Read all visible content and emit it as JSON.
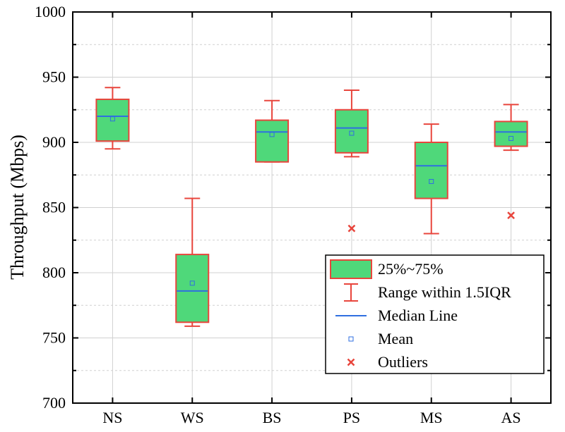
{
  "chart_data": {
    "type": "box",
    "title": "",
    "xlabel": "",
    "ylabel": "Throughput (Mbps)",
    "ylim": [
      700,
      1000
    ],
    "yticks": [
      700,
      750,
      800,
      850,
      900,
      950,
      1000
    ],
    "y_minor_step": 25,
    "grid": true,
    "legend_position": "bottom-right",
    "colors": {
      "box_fill": "#4fd87a",
      "box_edge": "#e8453c",
      "whisker": "#e8453c",
      "median": "#2f6fe0",
      "mean": "#2f6fe0",
      "outlier": "#e8453c",
      "grid": "#d0d0d0"
    },
    "categories": [
      "NS",
      "WS",
      "BS",
      "PS",
      "MS",
      "AS"
    ],
    "boxes": [
      {
        "name": "NS",
        "whisker_low": 895,
        "q1": 901,
        "median": 920,
        "q3": 933,
        "whisker_high": 942,
        "mean": 918,
        "outliers": []
      },
      {
        "name": "WS",
        "whisker_low": 759,
        "q1": 762,
        "median": 786,
        "q3": 814,
        "whisker_high": 857,
        "mean": 792,
        "outliers": []
      },
      {
        "name": "BS",
        "whisker_low": 885,
        "q1": 885,
        "median": 908,
        "q3": 917,
        "whisker_high": 932,
        "mean": 906,
        "outliers": []
      },
      {
        "name": "PS",
        "whisker_low": 889,
        "q1": 892,
        "median": 911,
        "q3": 925,
        "whisker_high": 940,
        "mean": 907,
        "outliers": [
          834
        ]
      },
      {
        "name": "MS",
        "whisker_low": 830,
        "q1": 857,
        "median": 882,
        "q3": 900,
        "whisker_high": 914,
        "mean": 870,
        "outliers": []
      },
      {
        "name": "AS",
        "whisker_low": 894,
        "q1": 897,
        "median": 908,
        "q3": 916,
        "whisker_high": 929,
        "mean": 903,
        "outliers": [
          844
        ]
      }
    ],
    "legend": [
      {
        "key": "box",
        "label": "25%~75%"
      },
      {
        "key": "range",
        "label": "Range within 1.5IQR"
      },
      {
        "key": "median",
        "label": "Median Line"
      },
      {
        "key": "mean",
        "label": "Mean"
      },
      {
        "key": "outlier",
        "label": "Outliers"
      }
    ]
  }
}
